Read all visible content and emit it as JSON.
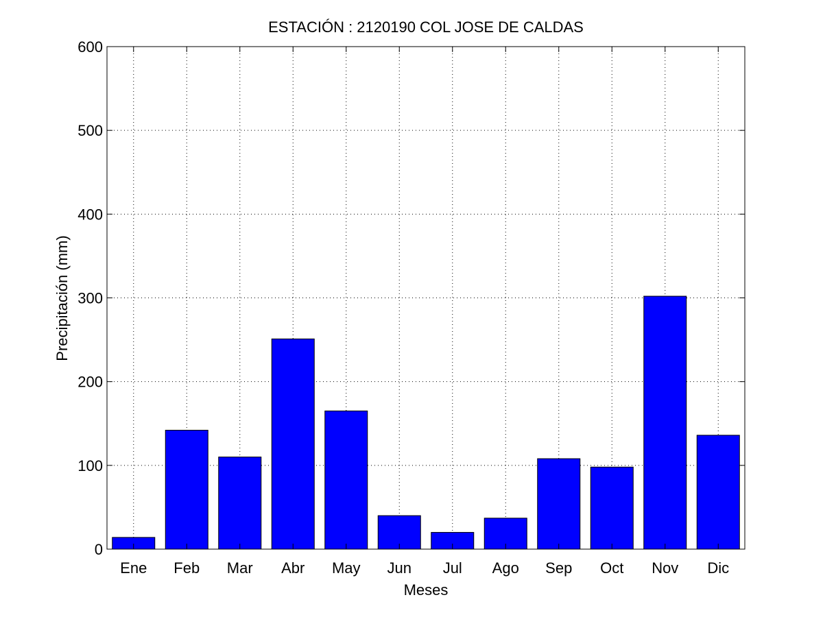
{
  "chart_data": {
    "type": "bar",
    "title": "ESTACIÓN :  2120190  COL JOSE DE CALDAS",
    "xlabel": "Meses",
    "ylabel": "Precipitación (mm)",
    "categories": [
      "Ene",
      "Feb",
      "Mar",
      "Abr",
      "May",
      "Jun",
      "Jul",
      "Ago",
      "Sep",
      "Oct",
      "Nov",
      "Dic"
    ],
    "values": [
      14,
      142,
      110,
      251,
      165,
      40,
      20,
      37,
      108,
      98,
      302,
      136
    ],
    "ylim": [
      0,
      600
    ],
    "yticks": [
      0,
      100,
      200,
      300,
      400,
      500,
      600
    ],
    "grid": true,
    "bar_color": "#0000ff",
    "edge_color": "#000000"
  }
}
